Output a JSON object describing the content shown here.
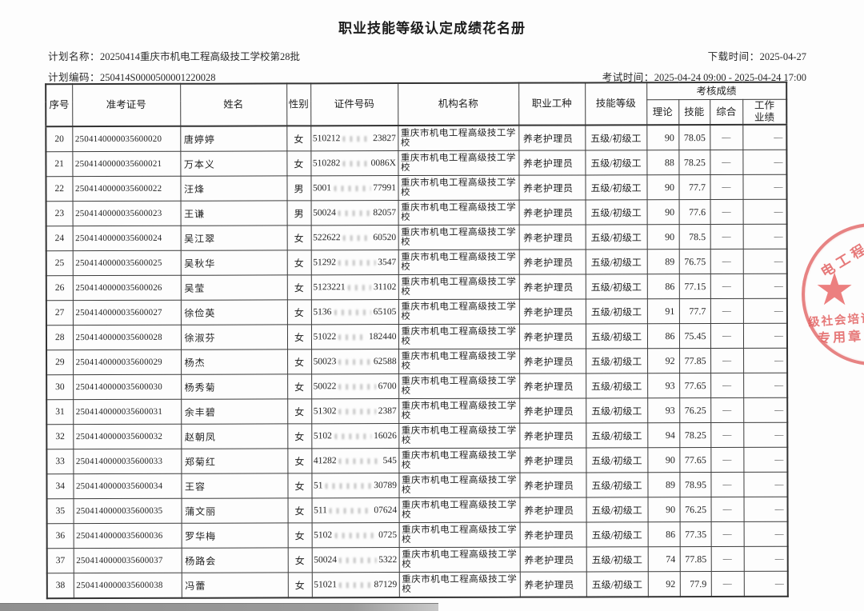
{
  "page": {
    "title": "职业技能等级认定成绩花名册"
  },
  "meta": {
    "plan_name_label": "计划名称：",
    "plan_name": "20250414重庆市机电工程高级技工学校第28批",
    "download_label": "下载时间：",
    "download_time": "2025-04-27",
    "plan_code_label": "计划编码：",
    "plan_code": "250414S0000500001220028",
    "exam_label": "考试时间：",
    "exam_time": "2025-04-24 09:00 - 2025-04-24 17:00"
  },
  "table": {
    "headers": {
      "seq": "序号",
      "admission_no": "准考证号",
      "name": "姓名",
      "gender": "性别",
      "id_no": "证件号码",
      "institution": "机构名称",
      "occupation": "职业工种",
      "skill_level": "技能等级",
      "score_group": "考核成绩",
      "theory": "理论",
      "skill": "技能",
      "comprehensive": "综合",
      "work": "工作业绩"
    },
    "rows": [
      {
        "seq": "20",
        "admission": "2504140000035600020",
        "name": "唐婷婷",
        "gender": "女",
        "id_prefix": "510212",
        "id_suffix": "23827",
        "institution": "重庆市机电工程高级技工学校",
        "occupation": "养老护理员",
        "level": "五级/初级工",
        "theory": "90",
        "skill": "78.05",
        "comprehensive": "—",
        "work": "—"
      },
      {
        "seq": "21",
        "admission": "2504140000035600021",
        "name": "万本义",
        "gender": "女",
        "id_prefix": "510282",
        "id_suffix": "0086X",
        "institution": "重庆市机电工程高级技工学校",
        "occupation": "养老护理员",
        "level": "五级/初级工",
        "theory": "88",
        "skill": "78.25",
        "comprehensive": "—",
        "work": "—"
      },
      {
        "seq": "22",
        "admission": "2504140000035600022",
        "name": "汪烽",
        "gender": "男",
        "id_prefix": "5001",
        "id_suffix": "77991",
        "institution": "重庆市机电工程高级技工学校",
        "occupation": "养老护理员",
        "level": "五级/初级工",
        "theory": "90",
        "skill": "77.7",
        "comprehensive": "—",
        "work": "—"
      },
      {
        "seq": "23",
        "admission": "2504140000035600023",
        "name": "王谦",
        "gender": "男",
        "id_prefix": "50024",
        "id_suffix": "82057",
        "institution": "重庆市机电工程高级技工学校",
        "occupation": "养老护理员",
        "level": "五级/初级工",
        "theory": "90",
        "skill": "77.6",
        "comprehensive": "—",
        "work": "—"
      },
      {
        "seq": "24",
        "admission": "2504140000035600024",
        "name": "吴江翠",
        "gender": "女",
        "id_prefix": "522622",
        "id_suffix": "60520",
        "institution": "重庆市机电工程高级技工学校",
        "occupation": "养老护理员",
        "level": "五级/初级工",
        "theory": "90",
        "skill": "78.5",
        "comprehensive": "—",
        "work": "—"
      },
      {
        "seq": "25",
        "admission": "2504140000035600025",
        "name": "吴秋华",
        "gender": "女",
        "id_prefix": "51292",
        "id_suffix": "3547",
        "institution": "重庆市机电工程高级技工学校",
        "occupation": "养老护理员",
        "level": "五级/初级工",
        "theory": "89",
        "skill": "76.75",
        "comprehensive": "—",
        "work": "—"
      },
      {
        "seq": "26",
        "admission": "2504140000035600026",
        "name": "吴莹",
        "gender": "女",
        "id_prefix": "5123221",
        "id_suffix": "31102",
        "institution": "重庆市机电工程高级技工学校",
        "occupation": "养老护理员",
        "level": "五级/初级工",
        "theory": "86",
        "skill": "77.15",
        "comprehensive": "—",
        "work": "—"
      },
      {
        "seq": "27",
        "admission": "2504140000035600027",
        "name": "徐俭英",
        "gender": "女",
        "id_prefix": "5136",
        "id_suffix": "65105",
        "institution": "重庆市机电工程高级技工学校",
        "occupation": "养老护理员",
        "level": "五级/初级工",
        "theory": "91",
        "skill": "77.7",
        "comprehensive": "—",
        "work": "—"
      },
      {
        "seq": "28",
        "admission": "2504140000035600028",
        "name": "徐淑芬",
        "gender": "女",
        "id_prefix": "51022",
        "id_suffix": "182440",
        "institution": "重庆市机电工程高级技工学校",
        "occupation": "养老护理员",
        "level": "五级/初级工",
        "theory": "86",
        "skill": "75.45",
        "comprehensive": "—",
        "work": "—"
      },
      {
        "seq": "29",
        "admission": "2504140000035600029",
        "name": "杨杰",
        "gender": "女",
        "id_prefix": "50023",
        "id_suffix": "62588",
        "institution": "重庆市机电工程高级技工学校",
        "occupation": "养老护理员",
        "level": "五级/初级工",
        "theory": "92",
        "skill": "77.85",
        "comprehensive": "—",
        "work": "—"
      },
      {
        "seq": "30",
        "admission": "2504140000035600030",
        "name": "杨秀菊",
        "gender": "女",
        "id_prefix": "50022",
        "id_suffix": "6700",
        "institution": "重庆市机电工程高级技工学校",
        "occupation": "养老护理员",
        "level": "五级/初级工",
        "theory": "93",
        "skill": "77.65",
        "comprehensive": "—",
        "work": "—"
      },
      {
        "seq": "31",
        "admission": "2504140000035600031",
        "name": "余丰碧",
        "gender": "女",
        "id_prefix": "51302",
        "id_suffix": "2387",
        "institution": "重庆市机电工程高级技工学校",
        "occupation": "养老护理员",
        "level": "五级/初级工",
        "theory": "93",
        "skill": "76.25",
        "comprehensive": "—",
        "work": "—"
      },
      {
        "seq": "32",
        "admission": "2504140000035600032",
        "name": "赵朝凤",
        "gender": "女",
        "id_prefix": "5102",
        "id_suffix": "16026",
        "institution": "重庆市机电工程高级技工学校",
        "occupation": "养老护理员",
        "level": "五级/初级工",
        "theory": "94",
        "skill": "78.25",
        "comprehensive": "—",
        "work": "—"
      },
      {
        "seq": "33",
        "admission": "2504140000035600033",
        "name": "郑菊红",
        "gender": "女",
        "id_prefix": "41282",
        "id_suffix": "545",
        "institution": "重庆市机电工程高级技工学校",
        "occupation": "养老护理员",
        "level": "五级/初级工",
        "theory": "90",
        "skill": "77.65",
        "comprehensive": "—",
        "work": "—"
      },
      {
        "seq": "34",
        "admission": "2504140000035600034",
        "name": "王容",
        "gender": "女",
        "id_prefix": "51",
        "id_suffix": "30789",
        "institution": "重庆市机电工程高级技工学校",
        "occupation": "养老护理员",
        "level": "五级/初级工",
        "theory": "89",
        "skill": "78.95",
        "comprehensive": "—",
        "work": "—"
      },
      {
        "seq": "35",
        "admission": "2504140000035600035",
        "name": "蒲文丽",
        "gender": "女",
        "id_prefix": "511",
        "id_suffix": "07624",
        "institution": "重庆市机电工程高级技工学校",
        "occupation": "养老护理员",
        "level": "五级/初级工",
        "theory": "90",
        "skill": "76.25",
        "comprehensive": "—",
        "work": "—"
      },
      {
        "seq": "36",
        "admission": "2504140000035600036",
        "name": "罗华梅",
        "gender": "女",
        "id_prefix": "5102",
        "id_suffix": "0725",
        "institution": "重庆市机电工程高级技工学校",
        "occupation": "养老护理员",
        "level": "五级/初级工",
        "theory": "86",
        "skill": "77.35",
        "comprehensive": "—",
        "work": "—"
      },
      {
        "seq": "37",
        "admission": "2504140000035600037",
        "name": "杨路会",
        "gender": "女",
        "id_prefix": "50024",
        "id_suffix": "5322",
        "institution": "重庆市机电工程高级技工学校",
        "occupation": "养老护理员",
        "level": "五级/初级工",
        "theory": "74",
        "skill": "77.85",
        "comprehensive": "—",
        "work": "—"
      },
      {
        "seq": "38",
        "admission": "2504140000035600038",
        "name": "冯蕾",
        "gender": "女",
        "id_prefix": "51021",
        "id_suffix": "87129",
        "institution": "重庆市机电工程高级技工学校",
        "occupation": "养老护理员",
        "level": "五级/初级工",
        "theory": "92",
        "skill": "77.9",
        "comprehensive": "—",
        "work": "—"
      }
    ]
  },
  "stamp": {
    "arc_text": "电工程",
    "text_line1": "级社会培训",
    "text_line2": "专用章",
    "star": "★",
    "color": "#e06060"
  }
}
